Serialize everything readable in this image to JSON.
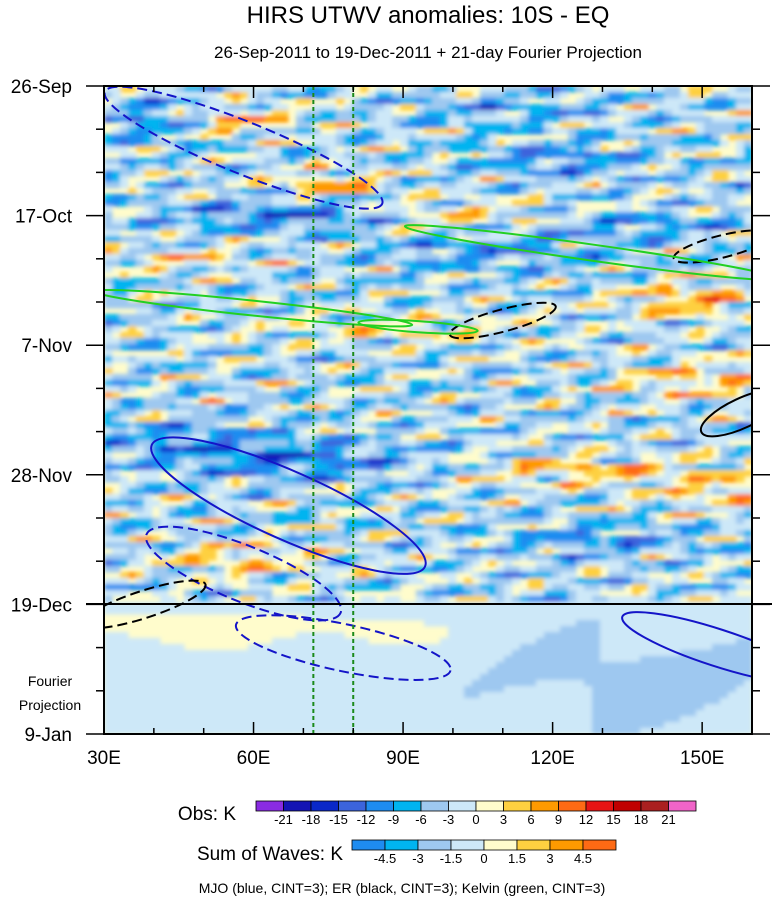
{
  "chart_data": {
    "type": "heatmap",
    "title": "HIRS UTWV anomalies: 10S - EQ",
    "subtitle": "26-Sep-2011 to 19-Dec-2011 + 21-day Fourier Projection",
    "xlabel": "",
    "ylabel": "",
    "xlim": [
      30,
      160
    ],
    "ylim_days": [
      0,
      105
    ],
    "x_ticks": [
      {
        "value": 30,
        "label": "30E"
      },
      {
        "value": 60,
        "label": "60E"
      },
      {
        "value": 90,
        "label": "90E"
      },
      {
        "value": 120,
        "label": "120E"
      },
      {
        "value": 150,
        "label": "150E"
      }
    ],
    "y_ticks": [
      {
        "day": 0,
        "label": "26-Sep"
      },
      {
        "day": 21,
        "label": "17-Oct"
      },
      {
        "day": 42,
        "label": "7-Nov"
      },
      {
        "day": 63,
        "label": "28-Nov"
      },
      {
        "day": 84,
        "label": "19-Dec"
      },
      {
        "day": 105,
        "label": "9-Jan"
      }
    ],
    "projection_start_day": 84,
    "projection_label": [
      "Fourier",
      "Projection"
    ],
    "reference_longitudes": [
      72,
      80
    ],
    "obs_colorbar": {
      "label": "Obs: K",
      "levels": [
        "-21",
        "-18",
        "-15",
        "-12",
        "-9",
        "-6",
        "-3",
        "0",
        "3",
        "6",
        "9",
        "12",
        "15",
        "18",
        "21"
      ],
      "colors": [
        "#8a2be2",
        "#1414b4",
        "#0a28c8",
        "#3c64dc",
        "#1e8cf0",
        "#00b4f0",
        "#9ec8f0",
        "#cde8f8",
        "#fffccc",
        "#fed040",
        "#fe9a00",
        "#fe6a14",
        "#e61414",
        "#c00000",
        "#aa2020",
        "#f064c8"
      ]
    },
    "waves_colorbar": {
      "label": "Sum of Waves: K",
      "levels": [
        "-4.5",
        "-3",
        "-1.5",
        "0",
        "1.5",
        "3",
        "4.5"
      ],
      "colors": [
        "#1e8cf0",
        "#00b4f0",
        "#9ec8f0",
        "#cde8f8",
        "#fffccc",
        "#fed040",
        "#fe9a00",
        "#fe6a14"
      ]
    },
    "wave_legend": "MJO (blue, CINT=3); ER (black, CINT=3); Kelvin (green, CINT=3)",
    "series": [
      {
        "name": "MJO",
        "color": "#1414c8",
        "contours": [
          {
            "style": "dashed",
            "center": [
              58,
              10
            ],
            "rx": 30,
            "ry": 4.2,
            "angle_deg": 22
          },
          {
            "style": "solid",
            "center": [
              67,
              68
            ],
            "rx": 30,
            "ry": 5.5,
            "angle_deg": 24
          },
          {
            "style": "dashed",
            "center": [
              58,
              79
            ],
            "rx": 21,
            "ry": 4.5,
            "angle_deg": 22
          },
          {
            "style": "dashed",
            "center": [
              78,
              91
            ],
            "rx": 22,
            "ry": 3.8,
            "angle_deg": 12
          },
          {
            "style": "solid",
            "center": [
              153,
              91
            ],
            "rx": 20,
            "ry": 3,
            "angle_deg": 18
          }
        ]
      },
      {
        "name": "ER",
        "color": "#000000",
        "contours": [
          {
            "style": "dashed",
            "center": [
              38,
              84
            ],
            "rx": 13,
            "ry": 2.2,
            "angle_deg": -18
          },
          {
            "style": "dashed",
            "center": [
              110,
              38
            ],
            "rx": 11,
            "ry": 1.8,
            "angle_deg": -15
          },
          {
            "style": "dashed",
            "center": [
              154,
              26
            ],
            "rx": 10,
            "ry": 1.8,
            "angle_deg": -14
          },
          {
            "style": "solid",
            "center": [
              158,
              53
            ],
            "rx": 9,
            "ry": 2.4,
            "angle_deg": -25
          }
        ]
      },
      {
        "name": "Kelvin",
        "color": "#22d022",
        "contours": [
          {
            "style": "solid",
            "center": [
              128,
              27
            ],
            "rx": 38,
            "ry": 1.3,
            "angle_deg": 8
          },
          {
            "style": "solid",
            "center": [
              60,
              36
            ],
            "rx": 32,
            "ry": 1.2,
            "angle_deg": 6
          },
          {
            "style": "solid",
            "center": [
              93,
              39
            ],
            "rx": 12,
            "ry": 0.9,
            "angle_deg": 4
          }
        ]
      }
    ]
  }
}
